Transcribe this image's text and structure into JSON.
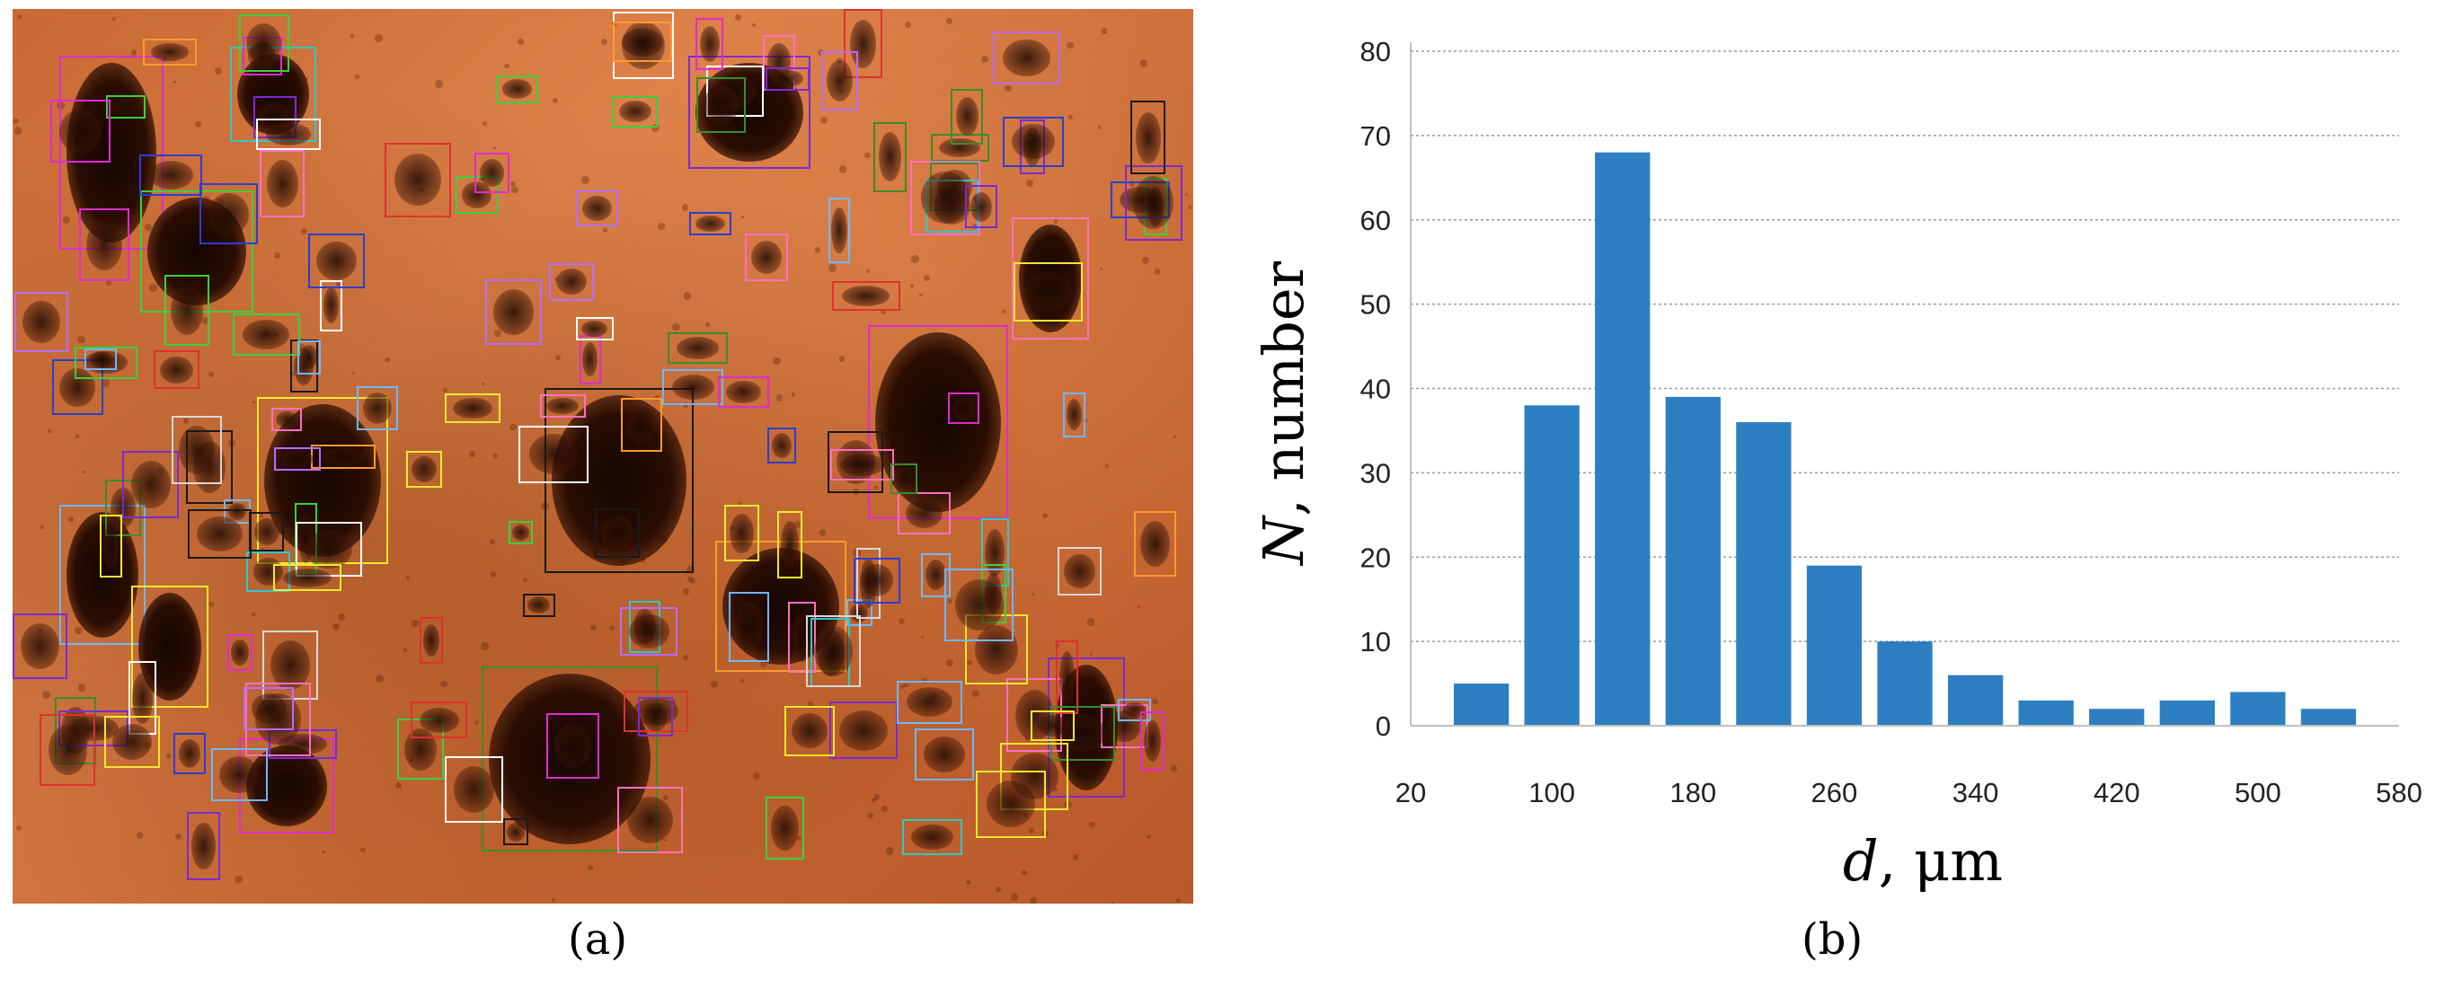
{
  "panels": {
    "a": {
      "label": "(a)"
    },
    "b": {
      "label": "(b)"
    }
  },
  "colors": {
    "bar": "#2d7fc1",
    "grid": "#9a9a9a",
    "axis": "#bfbfbf"
  },
  "chart_data": {
    "type": "bar",
    "title": "",
    "xlabel": "d, μm",
    "ylabel": "N, number",
    "ylim": [
      0,
      80
    ],
    "y_ticks": [
      0,
      10,
      20,
      30,
      40,
      50,
      60,
      70,
      80
    ],
    "xlim": [
      20,
      580
    ],
    "x_ticks": [
      20,
      100,
      180,
      260,
      340,
      420,
      500,
      580
    ],
    "bin_width": 40,
    "x": [
      60,
      100,
      140,
      180,
      220,
      260,
      300,
      340,
      380,
      420,
      460,
      500,
      540
    ],
    "values": [
      5,
      38,
      68,
      39,
      36,
      19,
      10,
      6,
      3,
      2,
      3,
      4,
      2
    ],
    "grid": true,
    "legend": "none"
  }
}
